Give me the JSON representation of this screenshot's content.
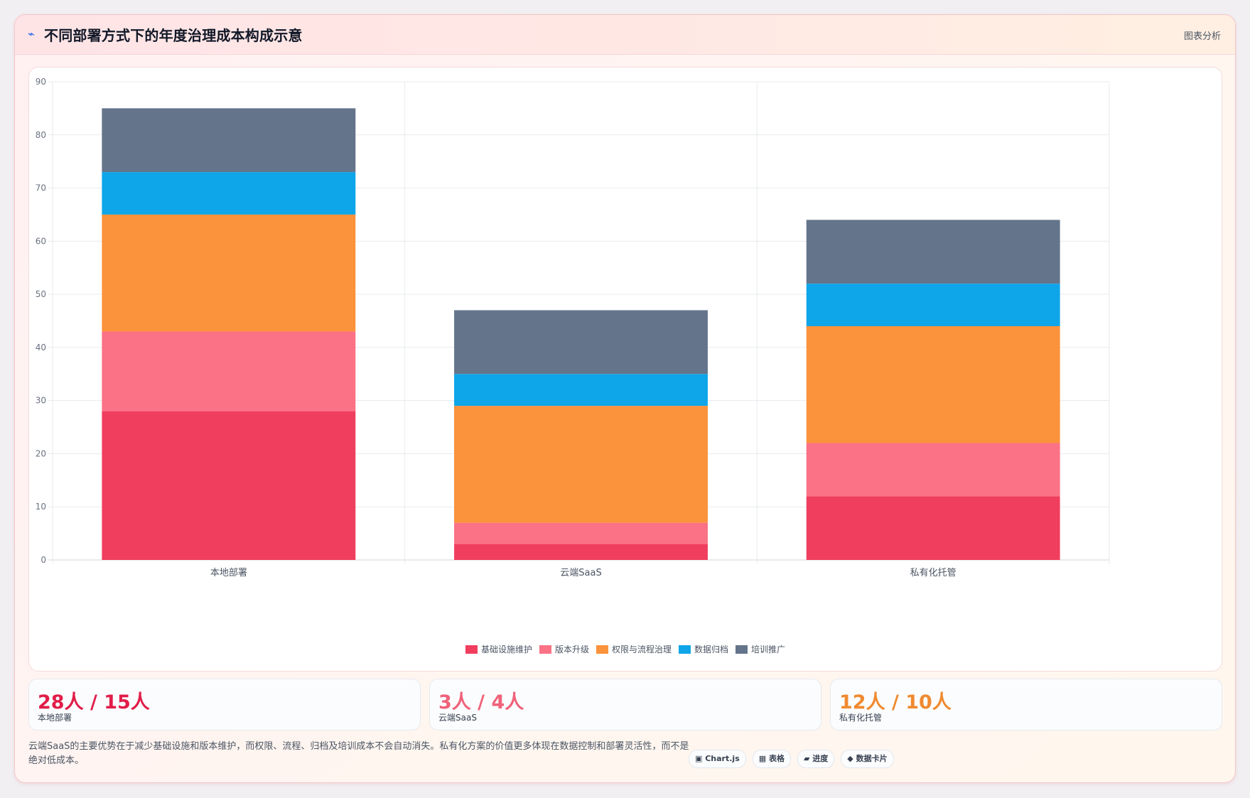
{
  "header": {
    "icon": "lightning-icon",
    "title": "不同部署方式下的年度治理成本构成示意",
    "analyze_label": "图表分析"
  },
  "chart_data": {
    "type": "bar",
    "stacked": true,
    "title": "",
    "xlabel": "",
    "ylabel": "",
    "ylim": [
      0,
      90
    ],
    "yticks": [
      0,
      10,
      20,
      30,
      40,
      50,
      60,
      70,
      80,
      90
    ],
    "grid": true,
    "legend_position": "bottom",
    "categories": [
      "本地部署",
      "云端SaaS",
      "私有化托管"
    ],
    "series": [
      {
        "name": "基础设施维护",
        "color": "#f03e5f",
        "values": [
          28,
          3,
          12
        ]
      },
      {
        "name": "版本升级",
        "color": "#fb7185",
        "values": [
          15,
          4,
          10
        ]
      },
      {
        "name": "权限与流程治理",
        "color": "#fb923c",
        "values": [
          22,
          22,
          22
        ]
      },
      {
        "name": "数据归档",
        "color": "#0ea5e9",
        "values": [
          8,
          6,
          8
        ]
      },
      {
        "name": "培训推广",
        "color": "#64748b",
        "values": [
          12,
          12,
          12
        ]
      }
    ]
  },
  "stats": [
    {
      "value": "28人 / 15人",
      "label": "本地部署",
      "color": "#e11d48"
    },
    {
      "value": "3人 / 4人",
      "label": "云端SaaS",
      "color": "#f0627a"
    },
    {
      "value": "12人 / 10人",
      "label": "私有化托管",
      "color": "#f08a30"
    }
  ],
  "note": "云端SaaS的主要优势在于减少基础设施和版本维护，而权限、流程、归档及培训成本不会自动消失。私有化方案的价值更多体现在数据控制和部署灵活性，而不是绝对低成本。",
  "tags": [
    {
      "icon": "chart-icon",
      "glyph": "▣",
      "label": "Chart.js"
    },
    {
      "icon": "table-icon",
      "glyph": "▦",
      "label": "表格"
    },
    {
      "icon": "progress-icon",
      "glyph": "▰",
      "label": "进度"
    },
    {
      "icon": "diamond-icon",
      "glyph": "◆",
      "label": "数据卡片"
    }
  ]
}
